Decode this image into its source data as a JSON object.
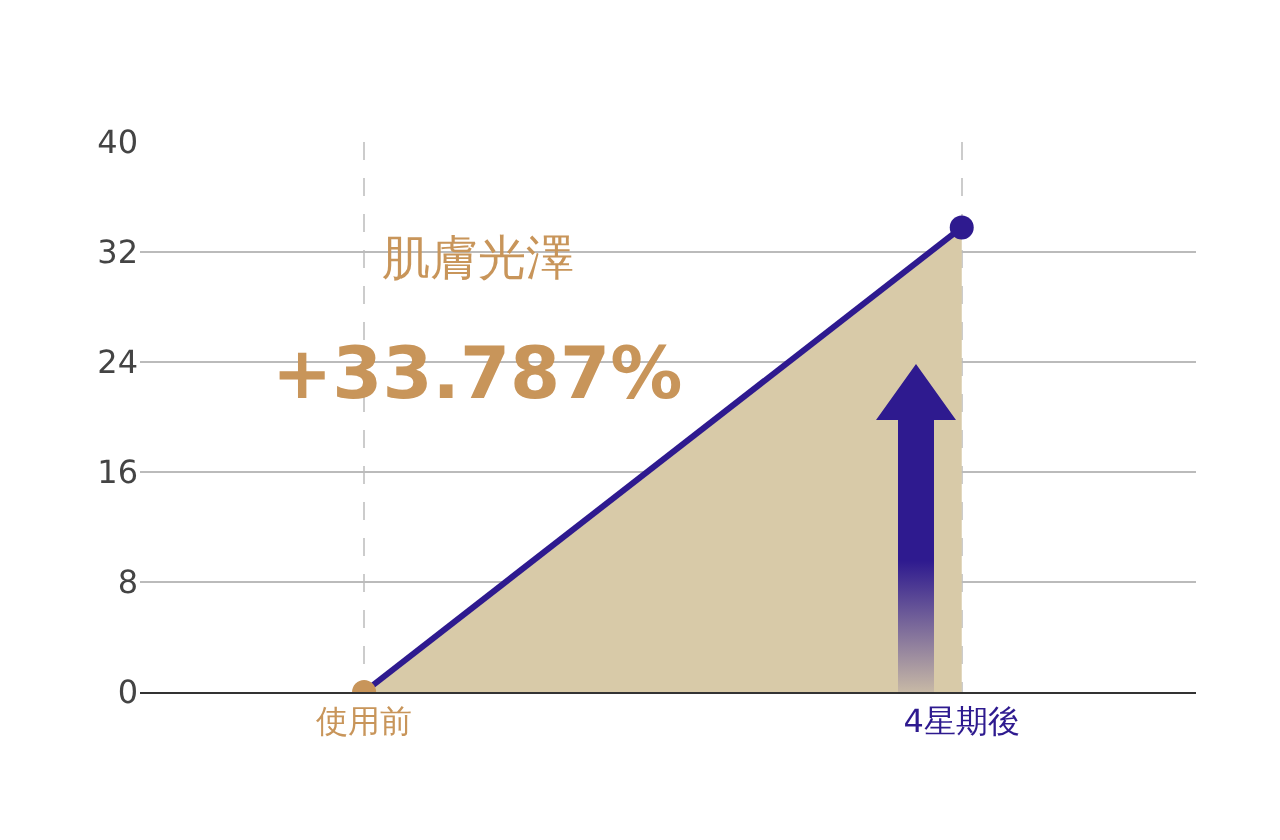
{
  "chart_data": {
    "type": "area",
    "categories": [
      "使用前",
      "4星期後"
    ],
    "series": [
      {
        "color": "#d8caa8",
        "colors": [
          "#c8955a",
          "#2e1a8f"
        ],
        "values": [
          0,
          33.787
        ]
      }
    ],
    "ylim": [
      0,
      40
    ],
    "yticks": [
      0,
      8,
      16,
      24,
      32,
      40
    ],
    "grid": true,
    "marker": "circle",
    "line_style": "solid",
    "annotations": [
      "肌膚光澤",
      "+33.787%"
    ]
  }
}
